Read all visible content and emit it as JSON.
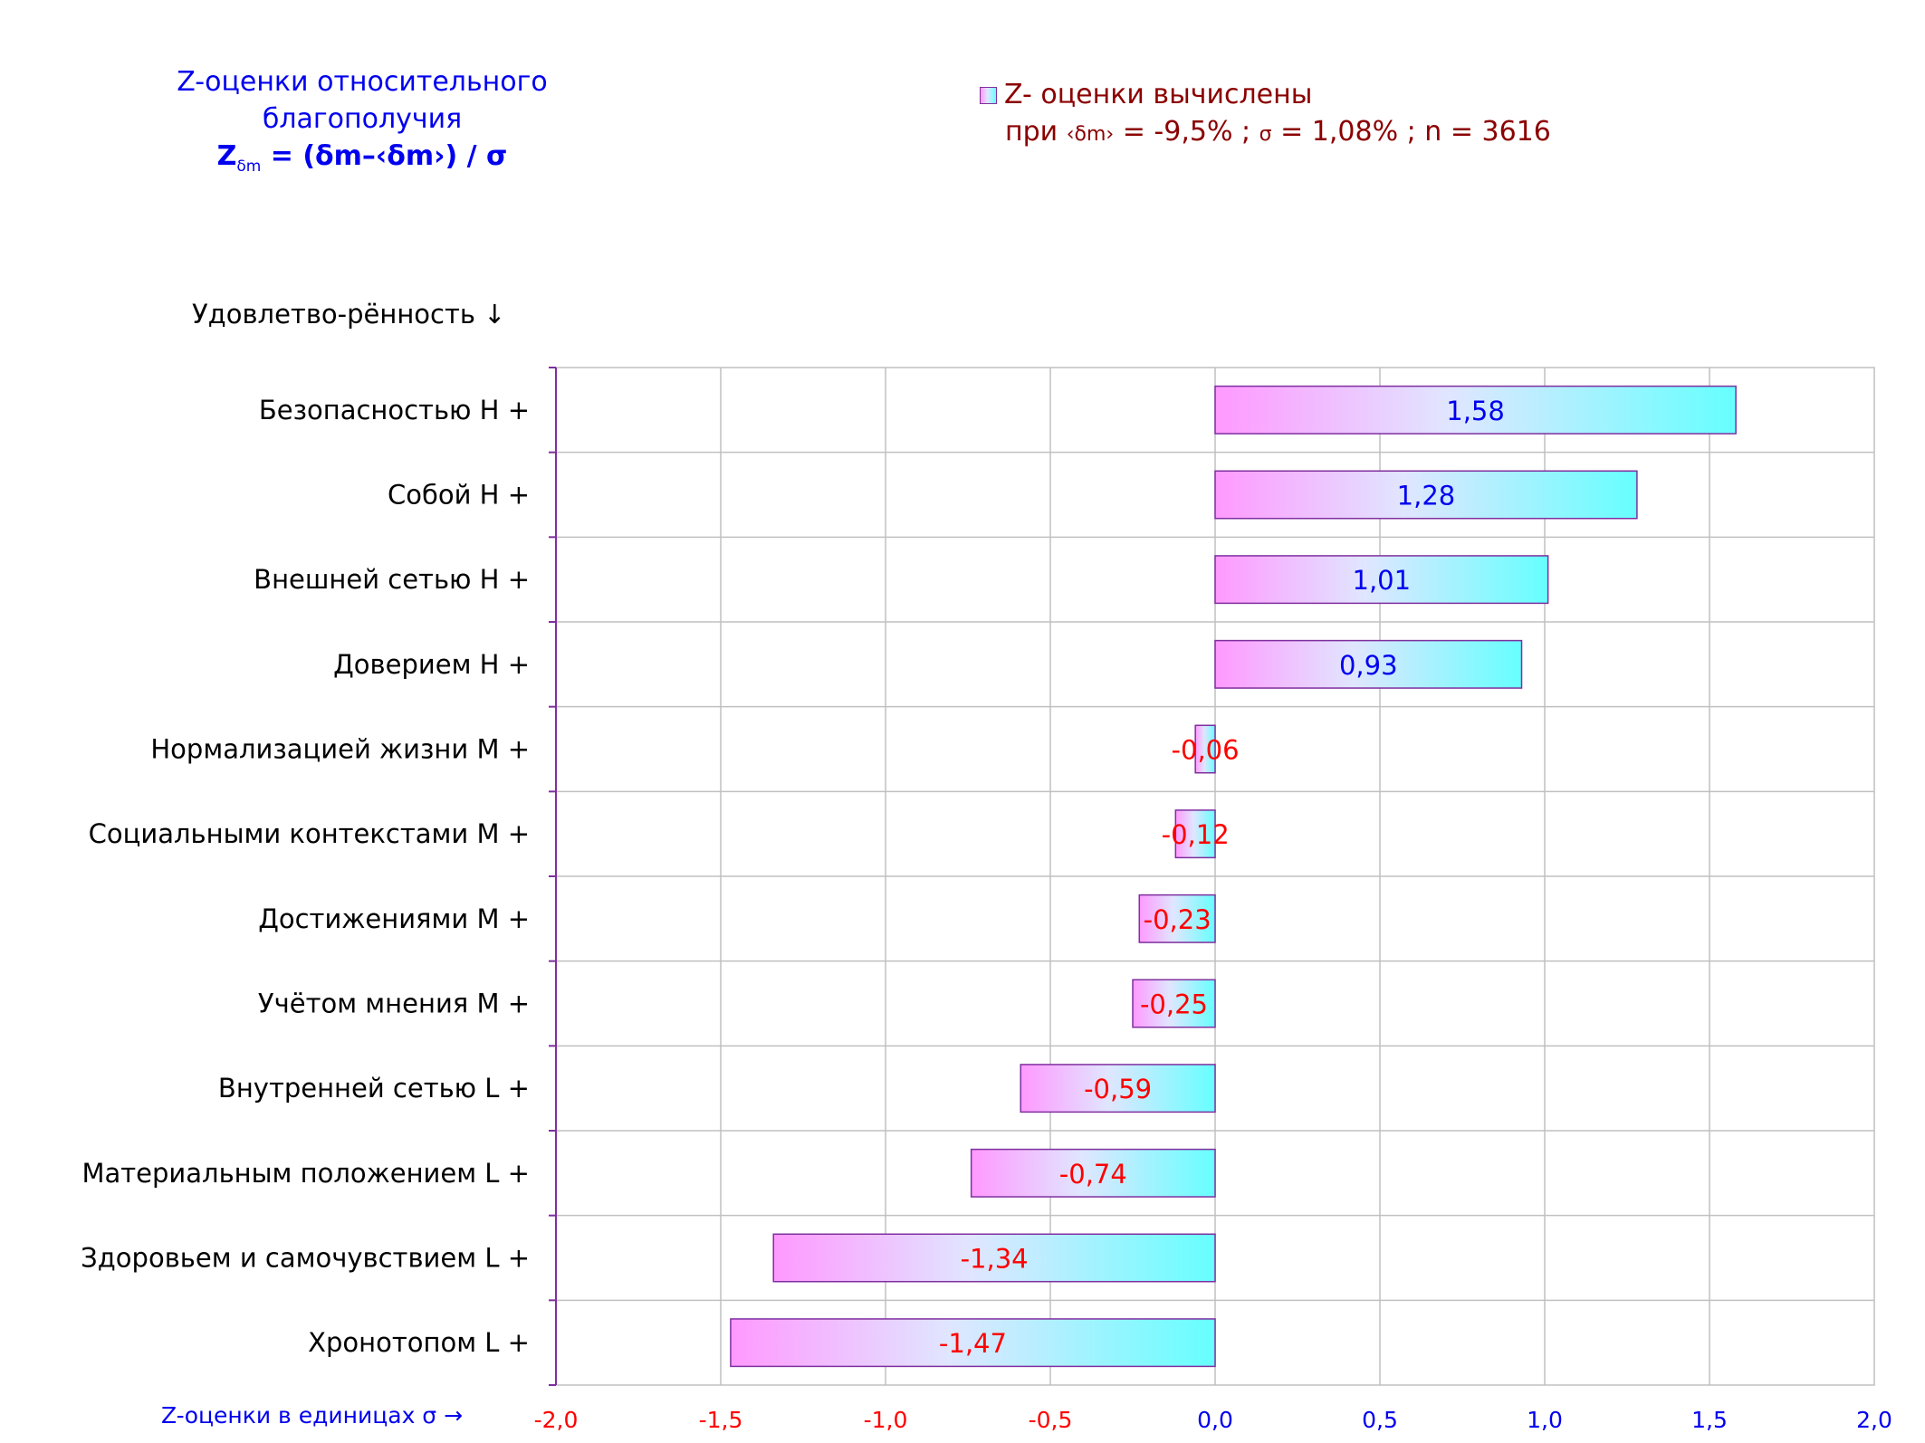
{
  "title": {
    "line1": "Z-оценки  относительного",
    "line2": "благополучия",
    "formula_main": "Z",
    "formula_sub": "δm",
    "formula_rest": " = (δm–‹δm›)  / σ"
  },
  "legend": {
    "series_label": "Z- оценки вычислены",
    "params_prefix": "при ",
    "params_symbol": "‹δm›",
    "params_rest": " = -9,5% ; ",
    "sigma_symbol": "σ",
    "params_tail": " = 1,08% ; n = 3616"
  },
  "y_axis_title": "Удовлетво-рённость ↓",
  "x_axis_title": "Z-оценки в единицах σ →",
  "colors": {
    "negative_text": "#ff0000",
    "positive_text": "#0000ee",
    "bar_gradient_start": "#ff99ff",
    "bar_gradient_mid": "#e0e6ff",
    "bar_gradient_end": "#66ffff",
    "bar_border": "#7f2f9f",
    "grid": "#c0c0c0",
    "axis": "#7f2f9f"
  },
  "chart_data": {
    "type": "bar",
    "orientation": "horizontal",
    "categories": [
      "Безопасностью  Н +",
      "Собой  Н +",
      "Внешней сетью  Н +",
      "Доверием  Н +",
      "Нормализацией жизни  М +",
      "Социальными контекстами  М +",
      "Достижениями  М +",
      "Учётом мнения  М +",
      "Внутренней сетью  L +",
      "Материальным положением  L +",
      "Здоровьем и самочувствием  L +",
      "Хронотопом  L +"
    ],
    "values": [
      1.58,
      1.28,
      1.01,
      0.93,
      -0.06,
      -0.12,
      -0.23,
      -0.25,
      -0.59,
      -0.74,
      -1.34,
      -1.47
    ],
    "value_labels": [
      "1,58",
      "1,28",
      "1,01",
      "0,93",
      "-0,06",
      "-0,12",
      "-0,23",
      "-0,25",
      "-0,59",
      "-0,74",
      "-1,34",
      "-1,47"
    ],
    "xlim": [
      -2.0,
      2.0
    ],
    "ticks": [
      -2.0,
      -1.5,
      -1.0,
      -0.5,
      0.0,
      0.5,
      1.0,
      1.5,
      2.0
    ],
    "tick_labels": [
      "-2,0",
      "-1,5",
      "-1,0",
      "-0,5",
      "0,0",
      "0,5",
      "1,0",
      "1,5",
      "2,0"
    ],
    "grid": true
  }
}
